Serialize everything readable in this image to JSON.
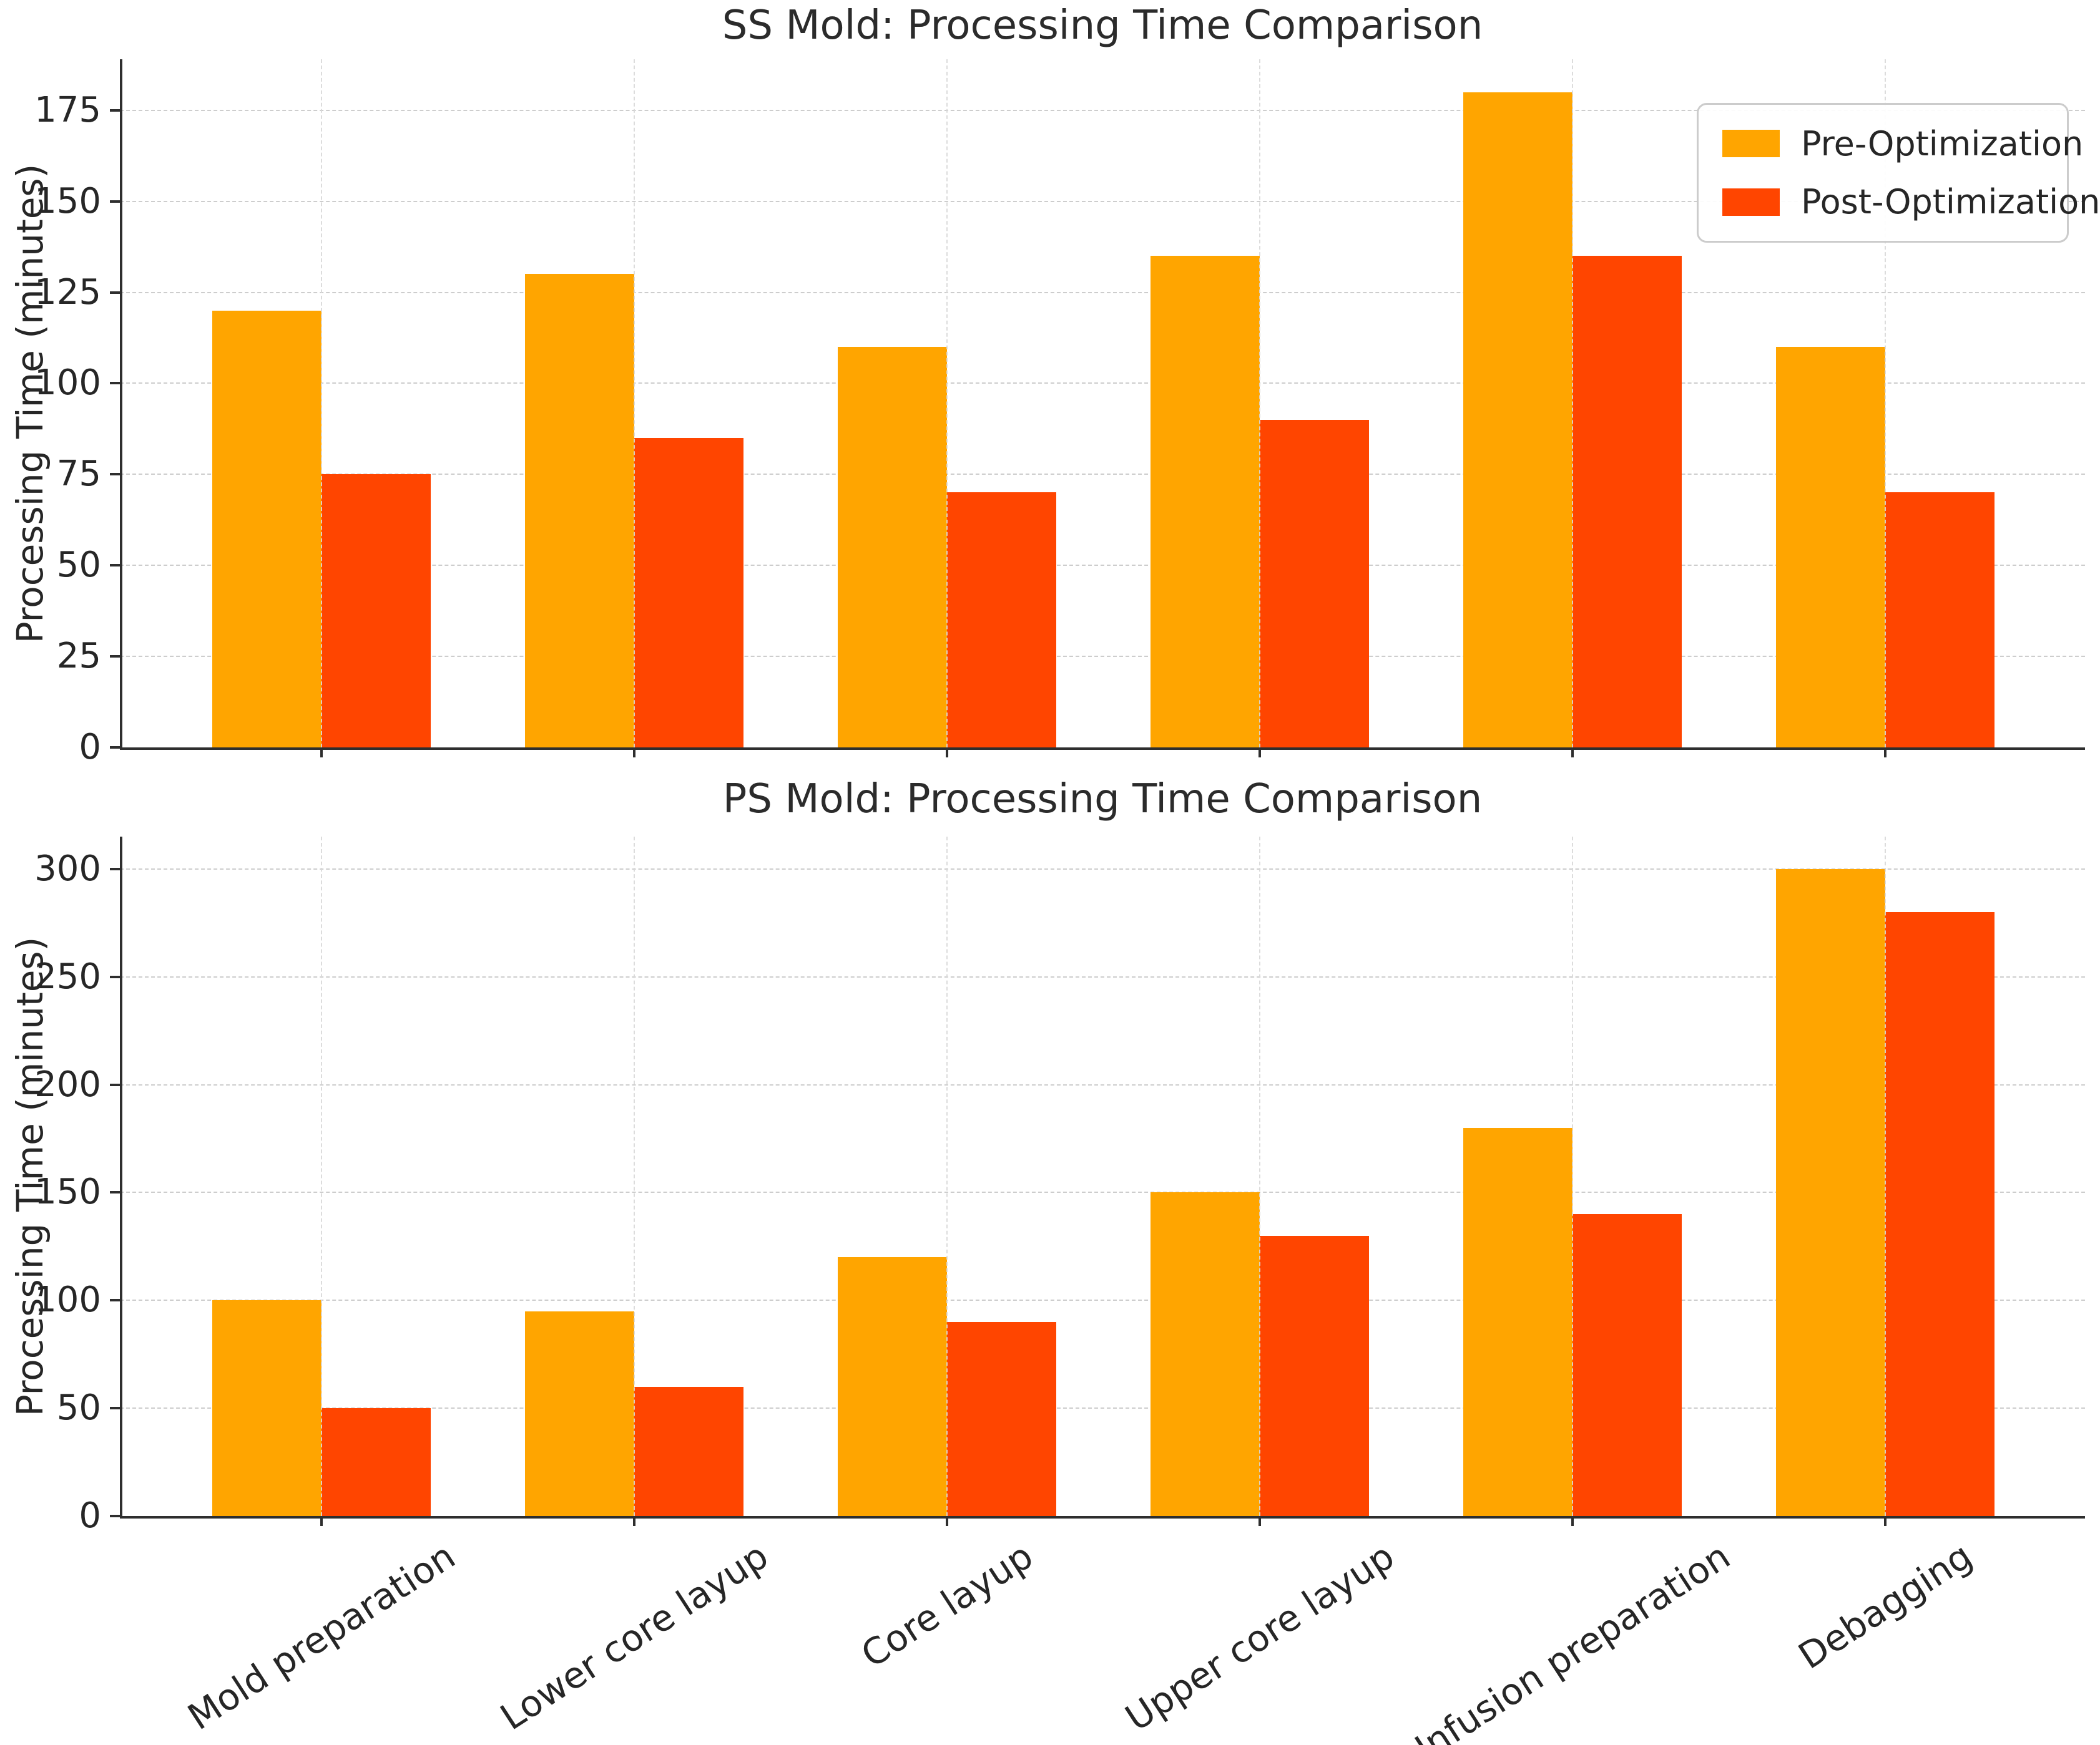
{
  "legend": {
    "items": [
      {
        "label": "Pre-Optimization",
        "color": "#FFA500"
      },
      {
        "label": "Post-Optimization",
        "color": "#FF4500"
      }
    ],
    "position": "upper right"
  },
  "colors": {
    "pre_optimization": "#FFA500",
    "post_optimization": "#FF4500",
    "grid": "#cdcdcd",
    "axis": "#2e2e2e",
    "text": "#262626"
  },
  "chart_data": [
    {
      "type": "bar",
      "title": "SS Mold: Processing Time Comparison",
      "xlabel": "",
      "ylabel": "Processing Time (minutes)",
      "categories": [
        "Mold preparation",
        "Lower core layup",
        "Core layup",
        "Upper core layup",
        "Infusion preparation",
        "Debagging"
      ],
      "series": [
        {
          "name": "Pre-Optimization",
          "color": "#FFA500",
          "values": [
            120,
            130,
            110,
            135,
            180,
            110
          ]
        },
        {
          "name": "Post-Optimization",
          "color": "#FF4500",
          "values": [
            75,
            85,
            70,
            90,
            135,
            70
          ]
        }
      ],
      "yticks": [
        0,
        25,
        50,
        75,
        100,
        125,
        150,
        175
      ],
      "ylim": [
        0,
        189
      ],
      "grid": true,
      "legend_position": "upper right",
      "show_x_tick_labels": false
    },
    {
      "type": "bar",
      "title": "PS Mold: Processing Time Comparison",
      "xlabel": "",
      "ylabel": "Processing Time (minutes)",
      "categories": [
        "Mold preparation",
        "Lower core layup",
        "Core layup",
        "Upper core layup",
        "Infusion preparation",
        "Debagging"
      ],
      "series": [
        {
          "name": "Pre-Optimization",
          "color": "#FFA500",
          "values": [
            100,
            95,
            120,
            150,
            180,
            300
          ]
        },
        {
          "name": "Post-Optimization",
          "color": "#FF4500",
          "values": [
            50,
            60,
            90,
            130,
            140,
            280
          ]
        }
      ],
      "yticks": [
        0,
        50,
        100,
        150,
        200,
        250,
        300
      ],
      "ylim": [
        0,
        315
      ],
      "grid": true,
      "legend_position": null,
      "show_x_tick_labels": true
    }
  ]
}
